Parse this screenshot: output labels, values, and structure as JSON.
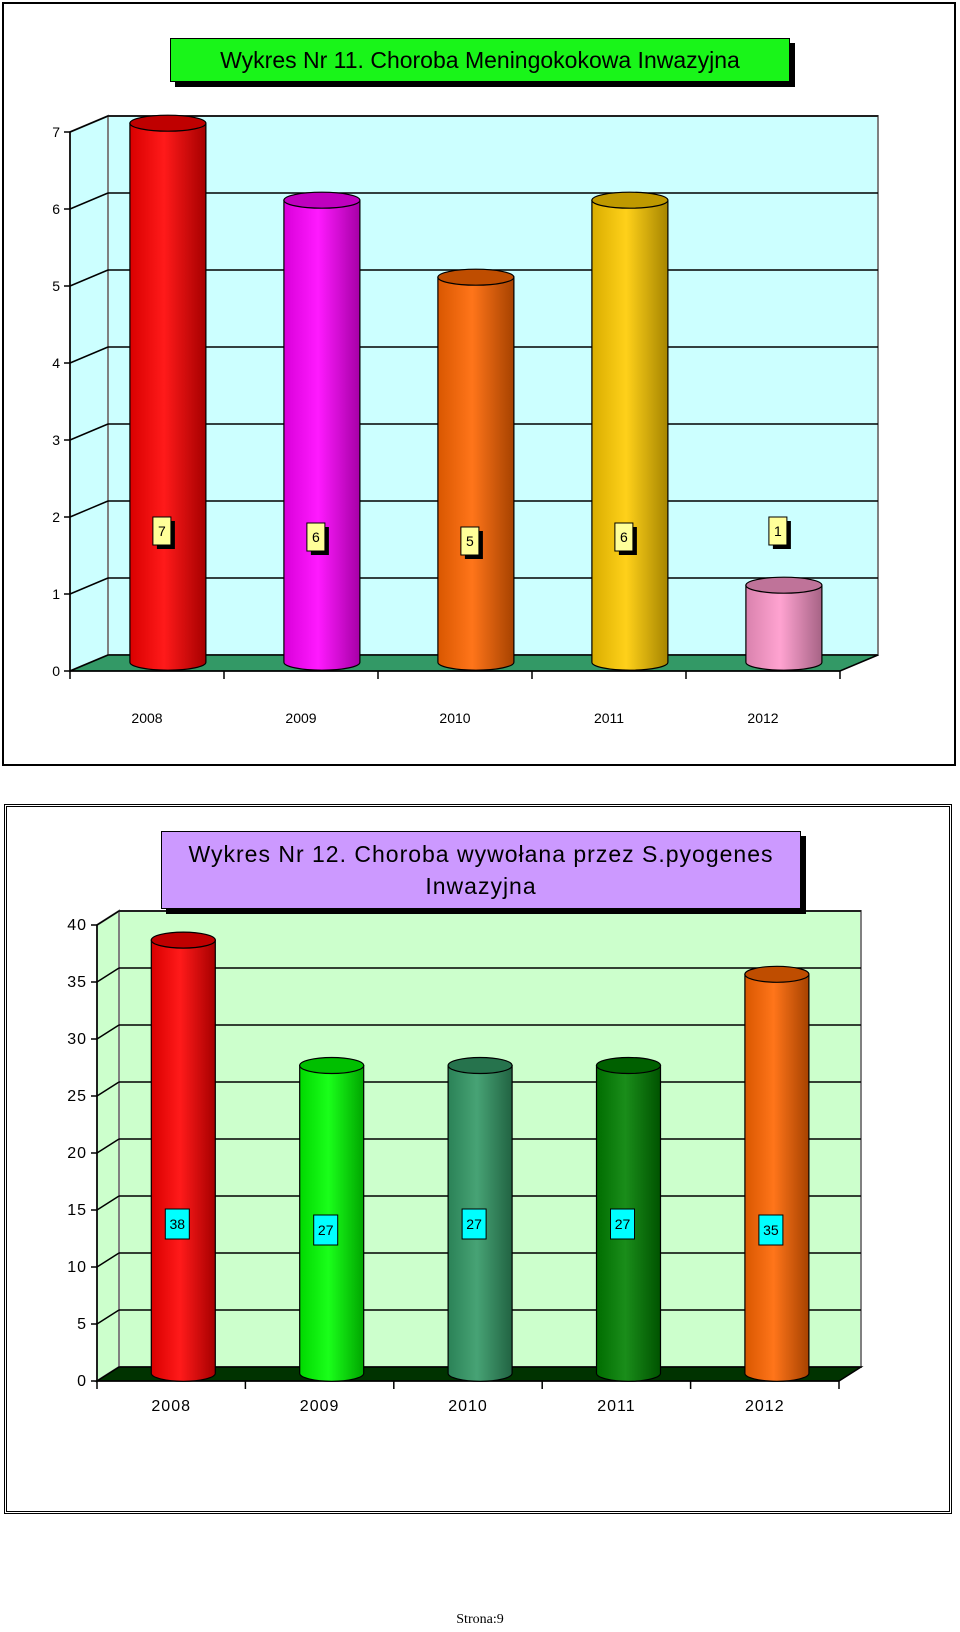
{
  "charts": [
    {
      "title": "Wykres Nr 11. Choroba Meningokokowa Inwazyjna",
      "colors": {
        "title_bg": "#19f519",
        "plot_bg": "#ccffff",
        "floor": "#339966",
        "label_bg": "#ffff99"
      }
    },
    {
      "title": "Wykres Nr 12. Choroba wywołana przez S.pyogenes Inwazyjna",
      "colors": {
        "title_bg": "#cc99ff",
        "plot_bg": "#ccffcc",
        "floor": "#003300",
        "label_bg": "#00ffff"
      }
    }
  ],
  "chart_data": [
    {
      "type": "bar",
      "categories": [
        "2008",
        "2009",
        "2010",
        "2011",
        "2012"
      ],
      "values": [
        7,
        6,
        5,
        6,
        1
      ],
      "data_labels": [
        "7",
        "6",
        "5",
        "6",
        "1"
      ],
      "bar_colors": [
        "#ff0000",
        "#ff00ff",
        "#ff6600",
        "#ffcc00",
        "#ff99cc"
      ],
      "ylim": [
        0,
        7
      ],
      "yticks": [
        0,
        1,
        2,
        3,
        4,
        5,
        6,
        7
      ],
      "grid": true,
      "style": "3d-cylinder"
    },
    {
      "type": "bar",
      "categories": [
        "2008",
        "2009",
        "2010",
        "2011",
        "2012"
      ],
      "values": [
        38,
        27,
        27,
        27,
        35
      ],
      "data_labels": [
        "38",
        "27",
        "27",
        "27",
        "35"
      ],
      "bar_colors": [
        "#ff0000",
        "#00ff00",
        "#339966",
        "#008000",
        "#ff6600"
      ],
      "ylim": [
        0,
        40
      ],
      "yticks": [
        0,
        5,
        10,
        15,
        20,
        25,
        30,
        35,
        40
      ],
      "grid": true,
      "style": "3d-cylinder"
    }
  ],
  "footer": {
    "page_label": "Strona:9"
  }
}
